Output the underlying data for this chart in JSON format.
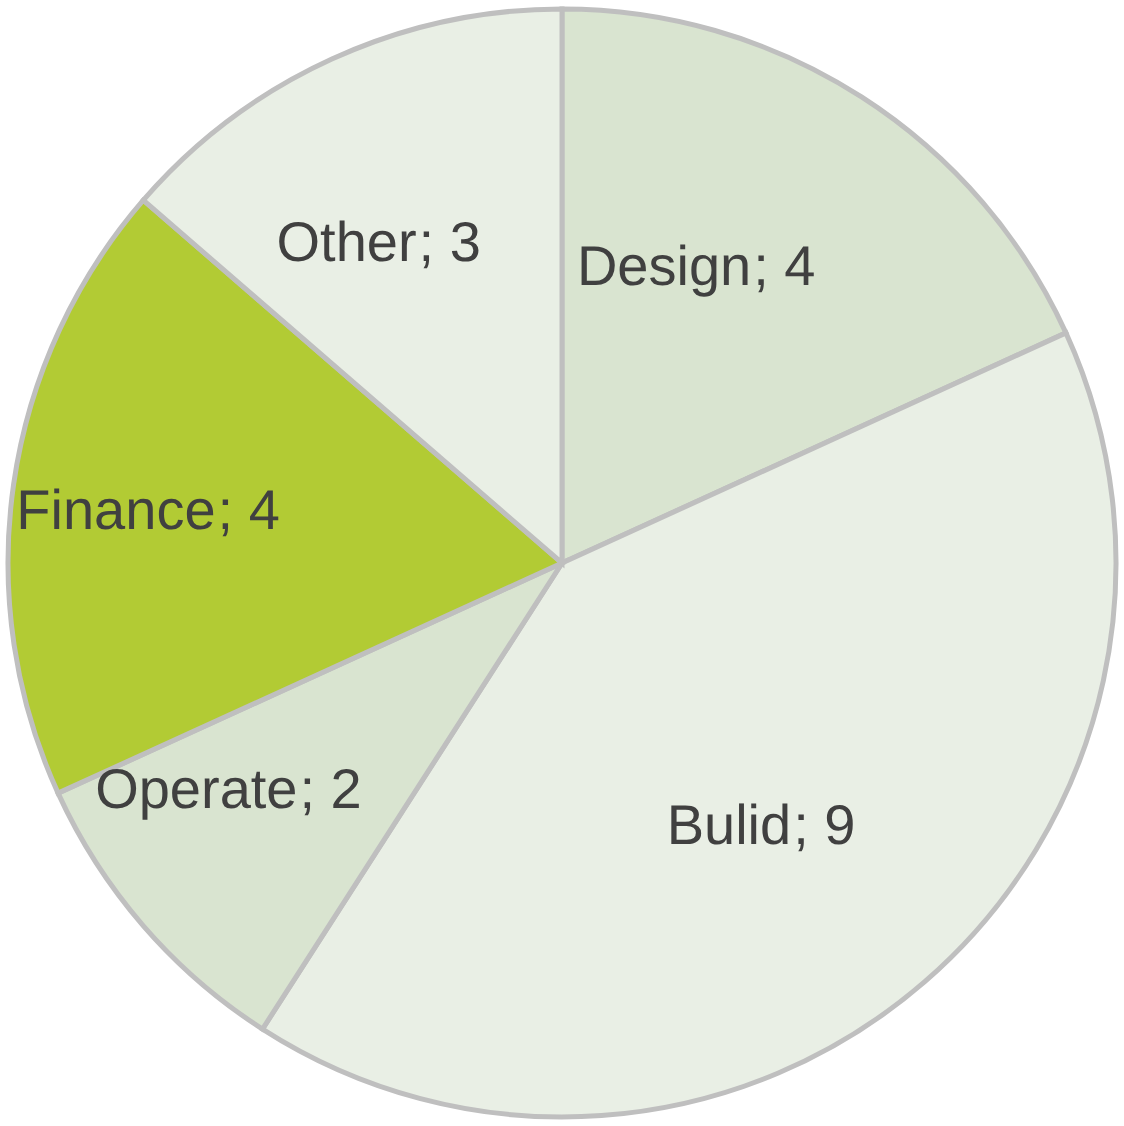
{
  "chart_data": {
    "type": "pie",
    "categories": [
      "Design",
      "Bulid",
      "Operate",
      "Finance",
      "Other"
    ],
    "values": [
      4,
      9,
      2,
      4,
      3
    ],
    "colors": [
      "#d9e4d0",
      "#e9efe5",
      "#d9e4d0",
      "#b2cb34",
      "#e9efe5"
    ],
    "value_labels": [
      "; 4",
      "; 9",
      "; 2",
      "; 4",
      "; 3"
    ]
  }
}
